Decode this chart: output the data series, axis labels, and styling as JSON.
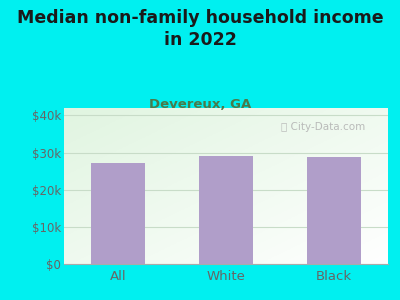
{
  "title_line1": "Median non-family household income",
  "title_line2": "in 2022",
  "subtitle": "Devereux, GA",
  "categories": [
    "All",
    "White",
    "Black"
  ],
  "values": [
    27200,
    29200,
    28700
  ],
  "bar_color": "#b09ec9",
  "background_color": "#00f0f0",
  "plot_bg_top_color": "#f0f8f0",
  "plot_bg_bottom_color": "#d8f0d8",
  "ylabel_ticks": [
    "$0",
    "$10k",
    "$20k",
    "$30k",
    "$40k"
  ],
  "ytick_values": [
    0,
    10000,
    20000,
    30000,
    40000
  ],
  "ylim": [
    0,
    42000
  ],
  "title_color": "#1a1a1a",
  "subtitle_color": "#4a7a4a",
  "tick_color": "#666666",
  "watermark": "City-Data.com",
  "grid_color": "#c8dcc8",
  "axis_line_color": "#aaaaaa"
}
